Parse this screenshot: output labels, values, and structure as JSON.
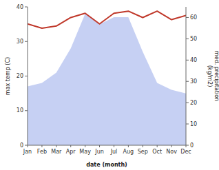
{
  "chart_data": {
    "type": "line",
    "categories": [
      "Jan",
      "Feb",
      "Mar",
      "Apr",
      "May",
      "Jun",
      "Jul",
      "Aug",
      "Sep",
      "Oct",
      "Nov",
      "Dec"
    ],
    "series": [
      {
        "type": "area",
        "color": "#b8c4f0",
        "values": [
          17,
          18,
          21,
          28,
          38,
          35,
          37,
          37,
          27,
          18,
          16,
          15
        ]
      },
      {
        "type": "line",
        "color": "#c0392b",
        "axis": "y2",
        "values": [
          57,
          55,
          56,
          60,
          62,
          57,
          62,
          63,
          60,
          63,
          59,
          61
        ]
      }
    ],
    "ylim": [
      0,
      40
    ],
    "yticks": [
      0,
      10,
      20,
      30,
      40
    ],
    "y2lim": [
      0,
      65
    ],
    "y2ticks": [
      0,
      10,
      20,
      30,
      40,
      50,
      60
    ],
    "xlabel": "date (month)",
    "ylabel": "max temp (C)",
    "y2label": "med. precipitation\n(kg/m2)"
  }
}
